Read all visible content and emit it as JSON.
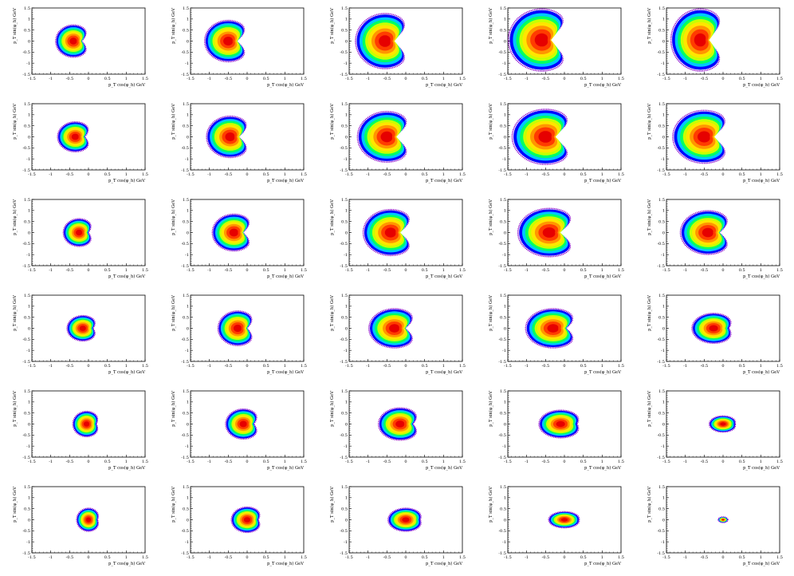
{
  "figure": {
    "rows": 6,
    "cols": 5
  },
  "axes": {
    "xlabel": "p_T cos(φ_h) GeV",
    "ylabel": "p_T sin(φ_h) GeV",
    "xlim": [
      -1.5,
      1.5
    ],
    "ylim": [
      -1.5,
      1.5
    ],
    "major_ticks": [
      -1.5,
      -1,
      -0.5,
      0,
      0.5,
      1,
      1.5
    ],
    "tick_labels": [
      "-1.5",
      "-1",
      "-0.5",
      "0",
      "0.5",
      "1",
      "1.5"
    ]
  },
  "palette": {
    "levels": [
      "#0000ff",
      "#00c8ff",
      "#00ff64",
      "#c8ff00",
      "#ffe600",
      "#ff9600",
      "#ff3c00",
      "#e60000"
    ],
    "outline": "#8800cc"
  },
  "chart_data": {
    "type": "heatmap",
    "description": "6x5 grid of 2D event-density histograms in the (p_T cos φ_h, p_T sin φ_h) plane; each panel shows a crescent-shaped distribution characterized by its center, extent and notch depth",
    "xlabel": "p_T cos(φ_h) GeV",
    "ylabel": "p_T sin(φ_h) GeV",
    "xlim": [
      -1.5,
      1.5
    ],
    "ylim": [
      -1.5,
      1.5
    ],
    "panels": [
      {
        "row": 1,
        "col": 1,
        "cx": -0.4,
        "cy": 0.0,
        "rx": 0.45,
        "ry": 0.7,
        "notch": 0.45
      },
      {
        "row": 1,
        "col": 2,
        "cx": -0.5,
        "cy": 0.0,
        "rx": 0.6,
        "ry": 0.9,
        "notch": 0.55
      },
      {
        "row": 1,
        "col": 3,
        "cx": -0.55,
        "cy": 0.0,
        "rx": 0.75,
        "ry": 1.2,
        "notch": 0.65
      },
      {
        "row": 1,
        "col": 4,
        "cx": -0.6,
        "cy": 0.05,
        "rx": 0.85,
        "ry": 1.35,
        "notch": 0.75
      },
      {
        "row": 1,
        "col": 5,
        "cx": -0.6,
        "cy": 0.05,
        "rx": 0.75,
        "ry": 1.35,
        "notch": 0.7
      },
      {
        "row": 2,
        "col": 1,
        "cx": -0.35,
        "cy": 0.0,
        "rx": 0.45,
        "ry": 0.65,
        "notch": 0.4
      },
      {
        "row": 2,
        "col": 2,
        "cx": -0.45,
        "cy": 0.0,
        "rx": 0.6,
        "ry": 0.9,
        "notch": 0.55
      },
      {
        "row": 2,
        "col": 3,
        "cx": -0.5,
        "cy": 0.0,
        "rx": 0.75,
        "ry": 1.1,
        "notch": 0.65
      },
      {
        "row": 2,
        "col": 4,
        "cx": -0.5,
        "cy": 0.0,
        "rx": 0.85,
        "ry": 1.2,
        "notch": 0.7
      },
      {
        "row": 2,
        "col": 5,
        "cx": -0.5,
        "cy": 0.0,
        "rx": 0.8,
        "ry": 1.15,
        "notch": 0.65
      },
      {
        "row": 3,
        "col": 1,
        "cx": -0.25,
        "cy": 0.0,
        "rx": 0.4,
        "ry": 0.6,
        "notch": 0.35
      },
      {
        "row": 3,
        "col": 2,
        "cx": -0.35,
        "cy": 0.0,
        "rx": 0.55,
        "ry": 0.8,
        "notch": 0.5
      },
      {
        "row": 3,
        "col": 3,
        "cx": -0.4,
        "cy": 0.0,
        "rx": 0.7,
        "ry": 1.0,
        "notch": 0.6
      },
      {
        "row": 3,
        "col": 4,
        "cx": -0.4,
        "cy": 0.0,
        "rx": 0.8,
        "ry": 1.05,
        "notch": 0.6
      },
      {
        "row": 3,
        "col": 5,
        "cx": -0.4,
        "cy": 0.0,
        "rx": 0.7,
        "ry": 0.95,
        "notch": 0.5
      },
      {
        "row": 4,
        "col": 1,
        "cx": -0.15,
        "cy": 0.0,
        "rx": 0.4,
        "ry": 0.55,
        "notch": 0.3
      },
      {
        "row": 4,
        "col": 2,
        "cx": -0.25,
        "cy": 0.0,
        "rx": 0.5,
        "ry": 0.75,
        "notch": 0.45
      },
      {
        "row": 4,
        "col": 3,
        "cx": -0.3,
        "cy": 0.0,
        "rx": 0.65,
        "ry": 0.85,
        "notch": 0.5
      },
      {
        "row": 4,
        "col": 4,
        "cx": -0.3,
        "cy": 0.0,
        "rx": 0.7,
        "ry": 0.85,
        "notch": 0.45
      },
      {
        "row": 4,
        "col": 5,
        "cx": -0.25,
        "cy": 0.0,
        "rx": 0.55,
        "ry": 0.65,
        "notch": 0.25
      },
      {
        "row": 5,
        "col": 1,
        "cx": -0.05,
        "cy": 0.0,
        "rx": 0.35,
        "ry": 0.55,
        "notch": 0.25
      },
      {
        "row": 5,
        "col": 2,
        "cx": -0.1,
        "cy": 0.0,
        "rx": 0.45,
        "ry": 0.65,
        "notch": 0.35
      },
      {
        "row": 5,
        "col": 3,
        "cx": -0.15,
        "cy": 0.0,
        "rx": 0.55,
        "ry": 0.7,
        "notch": 0.35
      },
      {
        "row": 5,
        "col": 4,
        "cx": -0.1,
        "cy": 0.0,
        "rx": 0.55,
        "ry": 0.6,
        "notch": 0.2
      },
      {
        "row": 5,
        "col": 5,
        "cx": 0.0,
        "cy": 0.0,
        "rx": 0.35,
        "ry": 0.35,
        "notch": 0.1
      },
      {
        "row": 6,
        "col": 1,
        "cx": 0.0,
        "cy": 0.0,
        "rx": 0.3,
        "ry": 0.5,
        "notch": 0.2
      },
      {
        "row": 6,
        "col": 2,
        "cx": 0.0,
        "cy": 0.0,
        "rx": 0.4,
        "ry": 0.55,
        "notch": 0.25
      },
      {
        "row": 6,
        "col": 3,
        "cx": 0.0,
        "cy": 0.0,
        "rx": 0.45,
        "ry": 0.5,
        "notch": 0.15
      },
      {
        "row": 6,
        "col": 4,
        "cx": 0.0,
        "cy": 0.0,
        "rx": 0.4,
        "ry": 0.35,
        "notch": 0.05
      },
      {
        "row": 6,
        "col": 5,
        "cx": 0.0,
        "cy": 0.0,
        "rx": 0.12,
        "ry": 0.12,
        "notch": 0.0
      }
    ]
  }
}
